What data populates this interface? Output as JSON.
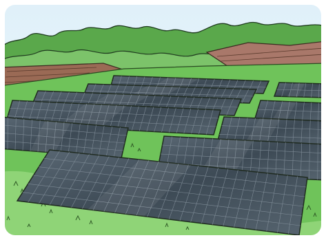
{
  "scene": {
    "subject": "solar-farm-illustration",
    "colors": {
      "sky": "#e8f4fb",
      "tree_dark": "#3f8a3a",
      "tree_light": "#7cc36a",
      "field_brown": "#9a6a55",
      "grass": "#6fc35a",
      "grass_light": "#8fd477",
      "panel": "#4c5a66",
      "panel_dark": "#2f3a44",
      "panel_grid": "#7f8c97",
      "outline": "#1f2a1f"
    }
  }
}
